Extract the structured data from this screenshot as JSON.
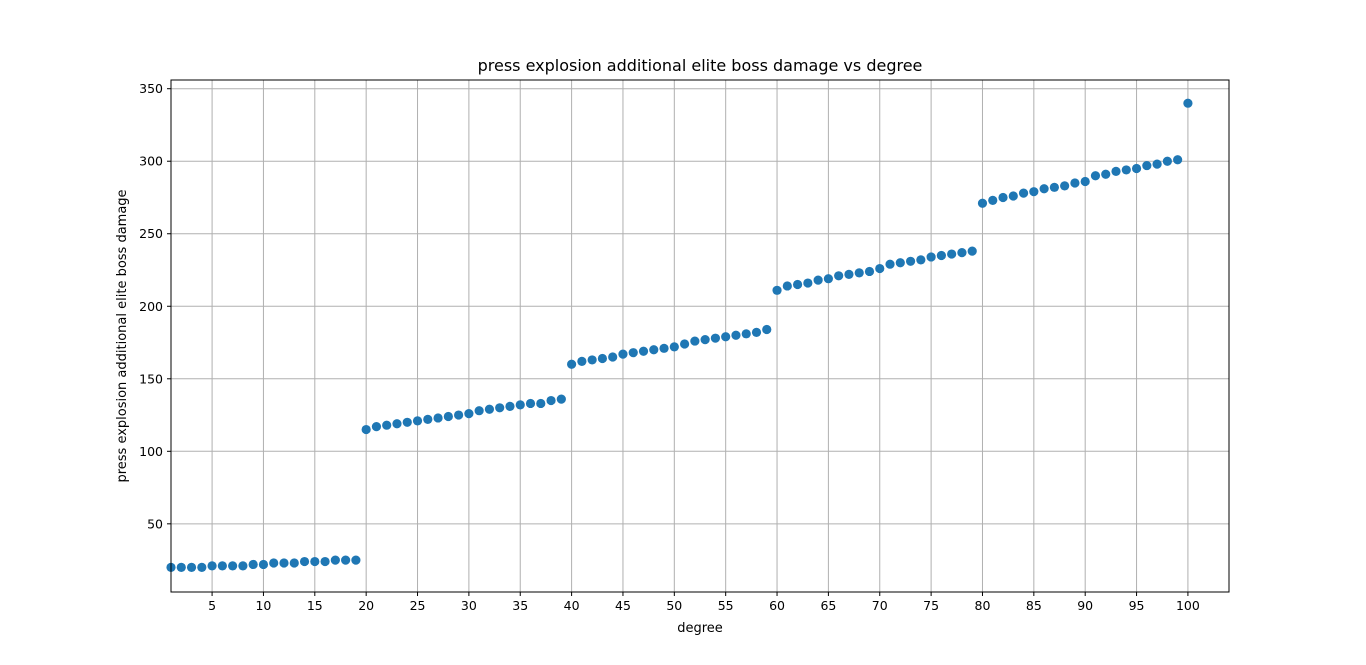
{
  "chart_data": {
    "type": "scatter",
    "title": "press explosion additional elite boss damage vs degree",
    "xlabel": "degree",
    "ylabel": "press explosion additional elite boss damage",
    "xlim": [
      1,
      104
    ],
    "ylim": [
      3,
      356
    ],
    "xticks": [
      5,
      10,
      15,
      20,
      25,
      30,
      35,
      40,
      45,
      50,
      55,
      60,
      65,
      70,
      75,
      80,
      85,
      90,
      95,
      100
    ],
    "yticks": [
      50,
      100,
      150,
      200,
      250,
      300,
      350
    ],
    "grid": true,
    "color": "#1f77b4",
    "x": [
      1,
      2,
      3,
      4,
      5,
      6,
      7,
      8,
      9,
      10,
      11,
      12,
      13,
      14,
      15,
      16,
      17,
      18,
      19,
      20,
      21,
      22,
      23,
      24,
      25,
      26,
      27,
      28,
      29,
      30,
      31,
      32,
      33,
      34,
      35,
      36,
      37,
      38,
      39,
      40,
      41,
      42,
      43,
      44,
      45,
      46,
      47,
      48,
      49,
      50,
      51,
      52,
      53,
      54,
      55,
      56,
      57,
      58,
      59,
      60,
      61,
      62,
      63,
      64,
      65,
      66,
      67,
      68,
      69,
      70,
      71,
      72,
      73,
      74,
      75,
      76,
      77,
      78,
      79,
      80,
      81,
      82,
      83,
      84,
      85,
      86,
      87,
      88,
      89,
      90,
      91,
      92,
      93,
      94,
      95,
      96,
      97,
      98,
      99,
      100
    ],
    "y": [
      20,
      20,
      20,
      20,
      21,
      21,
      21,
      21,
      22,
      22,
      23,
      23,
      23,
      24,
      24,
      24,
      25,
      25,
      25,
      115,
      117,
      118,
      119,
      120,
      121,
      122,
      123,
      124,
      125,
      126,
      128,
      129,
      130,
      131,
      132,
      133,
      133,
      135,
      136,
      160,
      162,
      163,
      164,
      165,
      167,
      168,
      169,
      170,
      171,
      172,
      174,
      176,
      177,
      178,
      179,
      180,
      181,
      182,
      184,
      211,
      214,
      215,
      216,
      218,
      219,
      221,
      222,
      223,
      224,
      226,
      229,
      230,
      231,
      232,
      234,
      235,
      236,
      237,
      238,
      271,
      273,
      275,
      276,
      278,
      279,
      281,
      282,
      283,
      285,
      286,
      290,
      291,
      293,
      294,
      295,
      297,
      298,
      300,
      301,
      340
    ]
  }
}
